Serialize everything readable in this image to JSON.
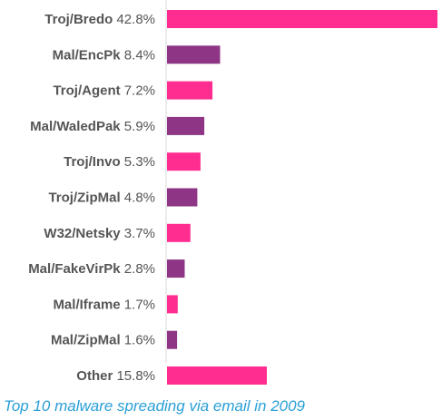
{
  "chart_data": {
    "type": "bar",
    "orientation": "horizontal",
    "caption": "Top 10 malware spreading via email in 2009",
    "categories": [
      "Troj/Bredo",
      "Mal/EncPk",
      "Troj/Agent",
      "Mal/WaledPak",
      "Troj/Invo",
      "Troj/ZipMal",
      "W32/Netsky",
      "Mal/FakeVirPk",
      "Mal/Iframe",
      "Mal/ZipMal",
      "Other"
    ],
    "values": [
      42.8,
      8.4,
      7.2,
      5.9,
      5.3,
      4.8,
      3.7,
      2.8,
      1.7,
      1.6,
      15.8
    ],
    "value_labels": [
      "42.8%",
      "8.4%",
      "7.2%",
      "5.9%",
      "5.3%",
      "4.8%",
      "3.7%",
      "2.8%",
      "1.7%",
      "1.6%",
      "15.8%"
    ],
    "colors": [
      "#ff2d8f",
      "#8e3585",
      "#ff2d8f",
      "#8e3585",
      "#ff2d8f",
      "#8e3585",
      "#ff2d8f",
      "#8e3585",
      "#ff2d8f",
      "#8e3585",
      "#ff2d8f"
    ],
    "xlim": [
      0,
      42.8
    ],
    "grid": false,
    "legend": "none"
  }
}
